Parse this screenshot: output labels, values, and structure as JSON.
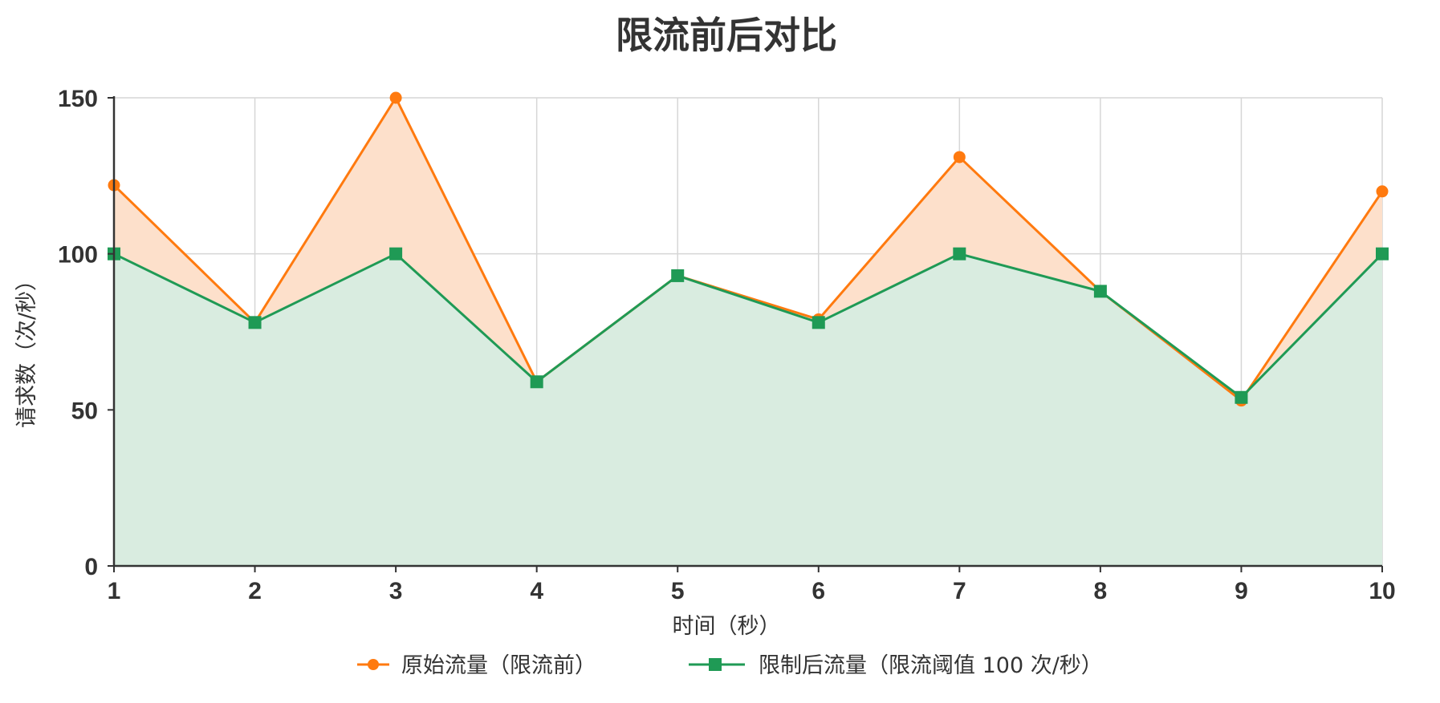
{
  "chart_data": {
    "type": "area",
    "title": "限流前后对比",
    "xlabel": "时间（秒）",
    "ylabel": "请求数（次/秒）",
    "x": [
      1,
      2,
      3,
      4,
      5,
      6,
      7,
      8,
      9,
      10
    ],
    "ylim": [
      0,
      150
    ],
    "yticks": [
      0,
      50,
      100,
      150
    ],
    "grid": true,
    "legend_position": "bottom",
    "series": [
      {
        "name": "原始流量（限流前）",
        "values": [
          122,
          78,
          150,
          59,
          93,
          79,
          131,
          88,
          53,
          120
        ],
        "color": "#ff7a0f",
        "fill": "#fde0cb",
        "marker": "circle"
      },
      {
        "name": "限制后流量（限流阈值 100 次/秒）",
        "values": [
          100,
          78,
          100,
          59,
          93,
          78,
          100,
          88,
          54,
          100
        ],
        "color": "#1f9a55",
        "fill": "#d9ece0",
        "marker": "square"
      }
    ]
  }
}
